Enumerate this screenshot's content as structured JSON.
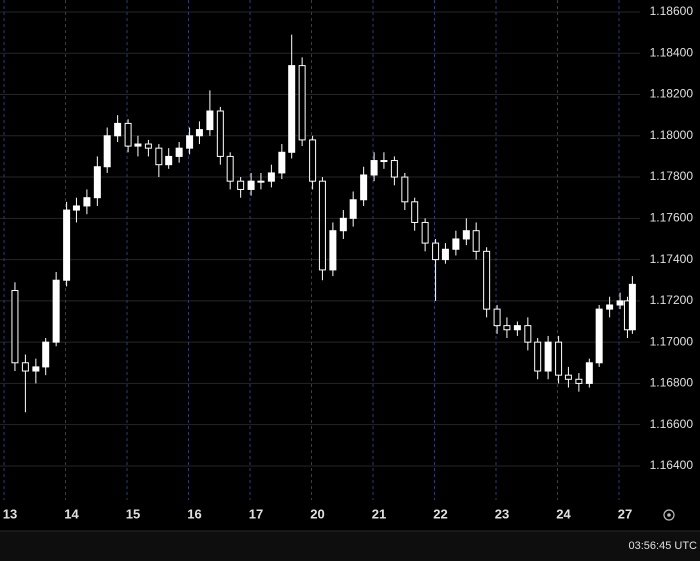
{
  "chart_data": {
    "type": "candlestick",
    "x": [
      0.08,
      0.25,
      0.42,
      0.58,
      0.75,
      0.92,
      1.08,
      1.25,
      1.42,
      1.58,
      1.75,
      1.92,
      2.08,
      2.25,
      2.42,
      2.58,
      2.75,
      2.92,
      3.08,
      3.25,
      3.42,
      3.58,
      3.75,
      3.92,
      4.08,
      4.25,
      4.42,
      4.58,
      4.75,
      4.92,
      5.08,
      5.25,
      5.42,
      5.58,
      5.75,
      5.92,
      6.08,
      6.25,
      6.42,
      6.58,
      6.75,
      6.92,
      7.08,
      7.25,
      7.42,
      7.58,
      7.75,
      7.92,
      8.08,
      8.25,
      8.42,
      8.58,
      8.75,
      8.92,
      9.08,
      9.25,
      9.42,
      9.58,
      9.75,
      9.92,
      10.04,
      10.12
    ],
    "open": [
      1.1725,
      1.169,
      1.1686,
      1.1688,
      1.17,
      1.173,
      1.1764,
      1.1766,
      1.177,
      1.1785,
      1.18,
      1.1806,
      1.1795,
      1.1796,
      1.1794,
      1.1786,
      1.179,
      1.1794,
      1.18,
      1.1803,
      1.1812,
      1.179,
      1.1778,
      1.1774,
      1.1778,
      1.1778,
      1.1782,
      1.1792,
      1.1834,
      1.1798,
      1.1778,
      1.1735,
      1.1754,
      1.176,
      1.1769,
      1.1781,
      1.1788,
      1.1788,
      1.178,
      1.1768,
      1.1758,
      1.1748,
      1.174,
      1.1745,
      1.175,
      1.1754,
      1.1744,
      1.1716,
      1.1708,
      1.1706,
      1.1708,
      1.17,
      1.1686,
      1.17,
      1.1684,
      1.1682,
      1.168,
      1.169,
      1.1716,
      1.1718,
      1.172,
      1.1706
    ],
    "high": [
      1.1729,
      1.1694,
      1.1692,
      1.1702,
      1.1734,
      1.1768,
      1.177,
      1.1774,
      1.179,
      1.1804,
      1.181,
      1.1808,
      1.18,
      1.1798,
      1.1796,
      1.1794,
      1.1797,
      1.1804,
      1.1807,
      1.1822,
      1.1814,
      1.1792,
      1.178,
      1.1782,
      1.1782,
      1.1786,
      1.1796,
      1.1849,
      1.1838,
      1.18,
      1.178,
      1.1758,
      1.1764,
      1.1773,
      1.1785,
      1.1792,
      1.1792,
      1.179,
      1.1782,
      1.177,
      1.176,
      1.175,
      1.1748,
      1.1754,
      1.176,
      1.1758,
      1.1746,
      1.1718,
      1.1712,
      1.171,
      1.1712,
      1.1702,
      1.1703,
      1.1703,
      1.1688,
      1.1685,
      1.1692,
      1.1718,
      1.1722,
      1.1724,
      1.1722,
      1.1732
    ],
    "low": [
      1.1686,
      1.1666,
      1.168,
      1.1684,
      1.1698,
      1.1727,
      1.1758,
      1.1762,
      1.1766,
      1.1782,
      1.1797,
      1.1792,
      1.179,
      1.179,
      1.178,
      1.1784,
      1.1787,
      1.1791,
      1.1796,
      1.18,
      1.1786,
      1.1774,
      1.177,
      1.1771,
      1.1774,
      1.1775,
      1.1779,
      1.1789,
      1.1795,
      1.1774,
      1.173,
      1.1732,
      1.175,
      1.1756,
      1.1766,
      1.1778,
      1.1784,
      1.1776,
      1.1764,
      1.1754,
      1.1744,
      1.172,
      1.1738,
      1.1742,
      1.1747,
      1.174,
      1.1712,
      1.1704,
      1.1702,
      1.1703,
      1.1696,
      1.1682,
      1.1682,
      1.168,
      1.1678,
      1.1676,
      1.1678,
      1.1688,
      1.1712,
      1.1716,
      1.1702,
      1.1704
    ],
    "close": [
      1.169,
      1.1686,
      1.1688,
      1.17,
      1.173,
      1.1764,
      1.1766,
      1.177,
      1.1785,
      1.18,
      1.1806,
      1.1795,
      1.1796,
      1.1794,
      1.1786,
      1.179,
      1.1794,
      1.18,
      1.1803,
      1.1812,
      1.179,
      1.1778,
      1.1774,
      1.1778,
      1.1778,
      1.1782,
      1.1792,
      1.1834,
      1.1798,
      1.1778,
      1.1735,
      1.1754,
      1.176,
      1.1769,
      1.1781,
      1.1788,
      1.1788,
      1.178,
      1.1768,
      1.1758,
      1.1748,
      1.174,
      1.1745,
      1.175,
      1.1754,
      1.1744,
      1.1716,
      1.1708,
      1.1706,
      1.1708,
      1.17,
      1.1686,
      1.17,
      1.1684,
      1.1682,
      1.168,
      1.169,
      1.1716,
      1.1718,
      1.172,
      1.1706,
      1.1728
    ],
    "color": "#ffffff",
    "xlim": [
      -0.163,
      10.244
    ],
    "ylim": [
      1.16235,
      1.18658
    ],
    "xticks": [
      {
        "value": 0,
        "label": "13"
      },
      {
        "value": 1,
        "label": "14"
      },
      {
        "value": 2,
        "label": "15"
      },
      {
        "value": 3,
        "label": "16"
      },
      {
        "value": 4,
        "label": "17"
      },
      {
        "value": 5,
        "label": "20"
      },
      {
        "value": 6,
        "label": "21"
      },
      {
        "value": 7,
        "label": "22"
      },
      {
        "value": 8,
        "label": "23"
      },
      {
        "value": 9,
        "label": "24"
      },
      {
        "value": 10,
        "label": "27"
      }
    ],
    "yticks": [
      {
        "value": 1.164,
        "label": "1.16400"
      },
      {
        "value": 1.166,
        "label": "1.16600"
      },
      {
        "value": 1.168,
        "label": "1.16800"
      },
      {
        "value": 1.17,
        "label": "1.17000"
      },
      {
        "value": 1.172,
        "label": "1.17200"
      },
      {
        "value": 1.174,
        "label": "1.17400"
      },
      {
        "value": 1.176,
        "label": "1.17600"
      },
      {
        "value": 1.178,
        "label": "1.17800"
      },
      {
        "value": 1.18,
        "label": "1.18000"
      },
      {
        "value": 1.182,
        "label": "1.18200"
      },
      {
        "value": 1.184,
        "label": "1.18400"
      },
      {
        "value": 1.186,
        "label": "1.18600"
      }
    ],
    "grid": true,
    "clock": "03:56:45 UTC"
  }
}
